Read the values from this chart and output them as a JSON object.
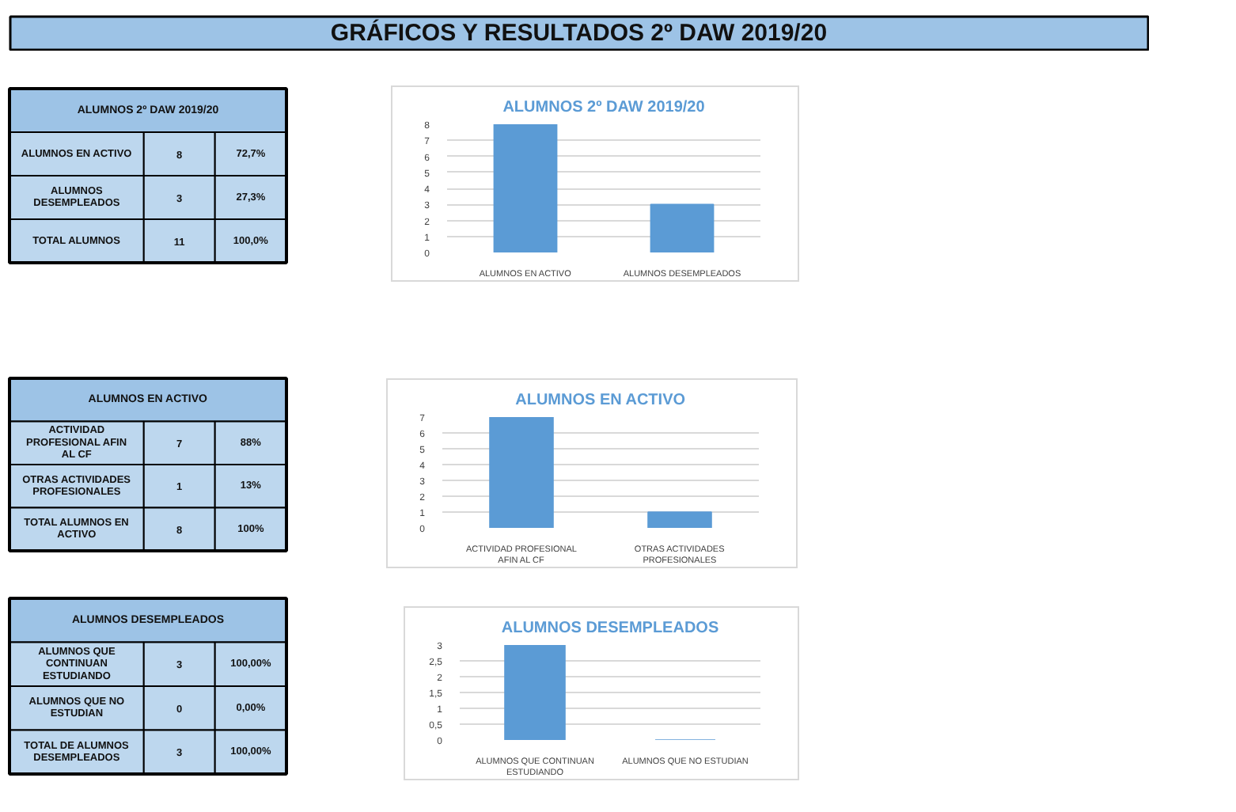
{
  "chart_data": [
    {
      "type": "other",
      "title": "GRÁFICOS Y RESULTADOS 2º DAW 2019/20"
    },
    {
      "type": "other",
      "title": "ALUMNOS 2º DAW 2019/20",
      "annotations": [
        "ALUMNOS EN ACTIVO",
        "8",
        "72,7%",
        "ALUMNOS DESEMPLEADOS",
        "3",
        "27,3%",
        "TOTAL ALUMNOS",
        "11",
        "100,0%"
      ]
    },
    {
      "type": "bar",
      "title": "ALUMNOS 2º DAW 2019/20",
      "categories": [
        "ALUMNOS EN ACTIVO",
        "ALUMNOS DESEMPLEADOS"
      ],
      "values": [
        8,
        3
      ],
      "color": "#5b9bd5",
      "ylim": [
        0,
        8
      ],
      "yticks": [
        0,
        1,
        2,
        3,
        4,
        5,
        6,
        7,
        8
      ],
      "grid": "y"
    },
    {
      "type": "other",
      "title": "ALUMNOS EN ACTIVO",
      "annotations": [
        "ACTIVIDAD PROFESIONAL AFIN AL CF",
        "7",
        "88%",
        "OTRAS ACTIVIDADES PROFESIONALES",
        "1",
        "13%",
        "TOTAL ALUMNOS EN ACTIVO",
        "8",
        "100%"
      ]
    },
    {
      "type": "bar",
      "title": "ALUMNOS EN ACTIVO",
      "categories": [
        "ACTIVIDAD PROFESIONAL AFIN AL CF",
        "OTRAS ACTIVIDADES PROFESIONALES"
      ],
      "values": [
        7,
        1
      ],
      "color": "#5b9bd5",
      "ylim": [
        0,
        7
      ],
      "yticks": [
        0,
        1,
        2,
        3,
        4,
        5,
        6,
        7
      ],
      "grid": "y"
    },
    {
      "type": "other",
      "title": "ALUMNOS DESEMPLEADOS",
      "annotations": [
        "ALUMNOS QUE CONTINUAN ESTUDIANDO",
        "3",
        "100,00%",
        "ALUMNOS QUE NO ESTUDIAN",
        "0",
        "0,00%",
        "TOTAL DE ALUMNOS DESEMPLEADOS",
        "3",
        "100,00%"
      ]
    },
    {
      "type": "bar",
      "title": "ALUMNOS DESEMPLEADOS",
      "categories": [
        "ALUMNOS QUE CONTINUAN ESTUDIANDO",
        "ALUMNOS QUE NO ESTUDIAN"
      ],
      "values": [
        3,
        0
      ],
      "color": "#5b9bd5",
      "ylim": [
        0,
        3
      ],
      "yticks": [
        0,
        {
          "value": 0.5,
          "label": "0,5"
        },
        1,
        {
          "value": 1.5,
          "label": "1,5"
        },
        2,
        {
          "value": 2.5,
          "label": "2,5"
        },
        3
      ],
      "grid": "y"
    }
  ]
}
